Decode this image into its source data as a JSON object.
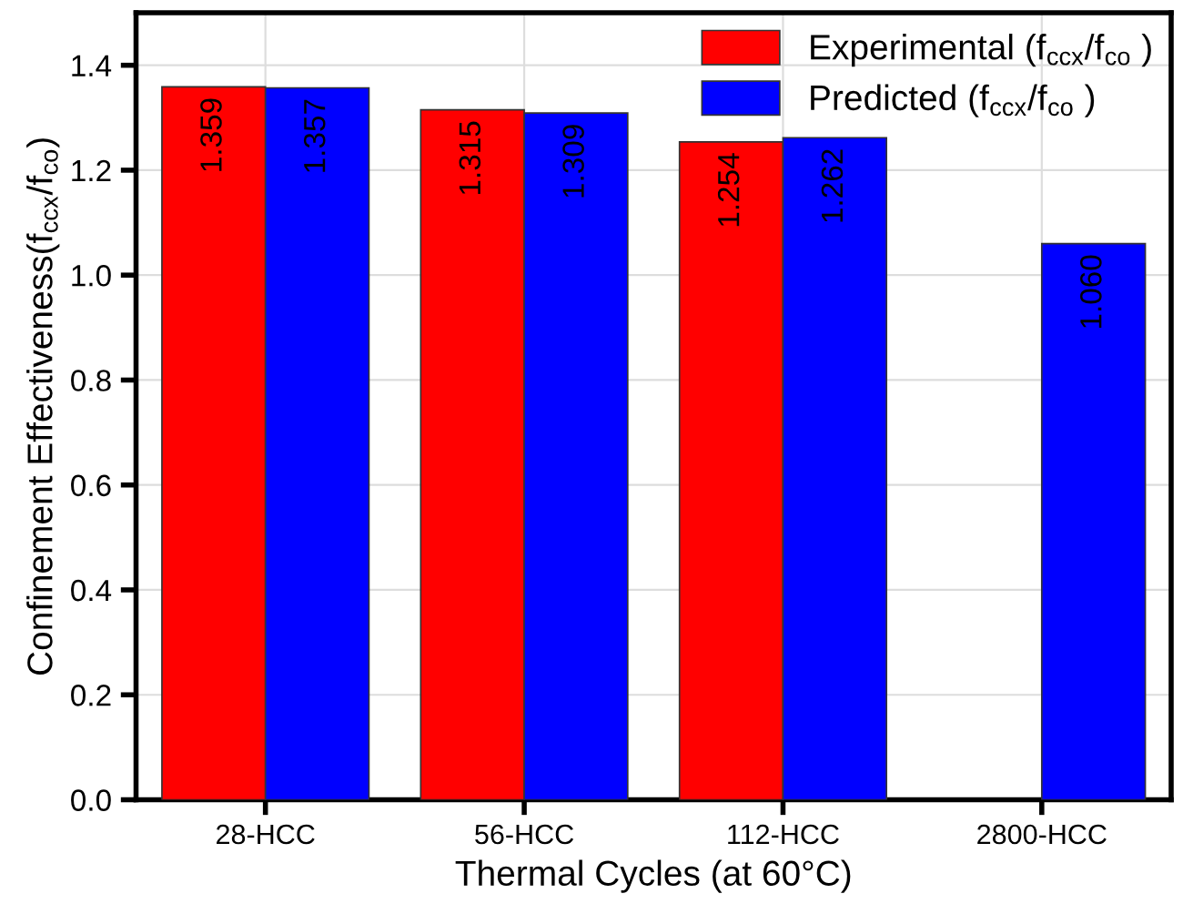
{
  "chart_data": {
    "type": "bar",
    "xlabel": "Thermal Cycles (at 60°C)",
    "ylabel": "Confinement Effectiveness(f$_{ccx}$/f$_{co}$)",
    "categories": [
      "28-HCC",
      "56-HCC",
      "112-HCC",
      "2800-HCC"
    ],
    "series": [
      {
        "name": "Experimental (f$_{ccx}$/f$_{co}$ )",
        "color": "#ff0000",
        "values": [
          1.359,
          1.315,
          1.254,
          null
        ],
        "value_labels": [
          "1.359",
          "1.315",
          "1.254",
          null
        ]
      },
      {
        "name": "Predicted (f$_{ccx}$/f$_{co}$ )",
        "color": "#0000ff",
        "values": [
          1.357,
          1.309,
          1.262,
          1.06
        ],
        "value_labels": [
          "1.357",
          "1.309",
          "1.262",
          "1.060"
        ]
      }
    ],
    "ylim": [
      0,
      1.5
    ],
    "yticks": [
      {
        "value": 0,
        "label": "0.0"
      },
      0.2,
      0.4,
      0.6,
      0.8,
      {
        "value": 1,
        "label": "1.0"
      },
      1.2,
      1.4
    ],
    "grid": true,
    "legend": "top right"
  }
}
